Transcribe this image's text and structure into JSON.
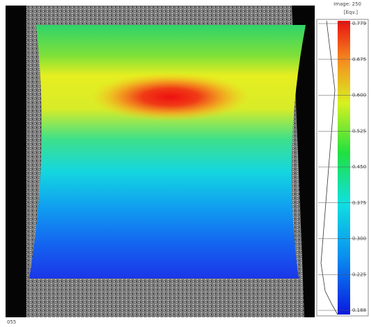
{
  "colorbar": {
    "title": "Image: 250",
    "unit": "[Eqv.]",
    "labels": [
      "0.779",
      "0.675",
      "0.600",
      "0.525",
      "0.450",
      "0.375",
      "0.300",
      "0.225",
      "0.188"
    ]
  },
  "footer": "055"
}
